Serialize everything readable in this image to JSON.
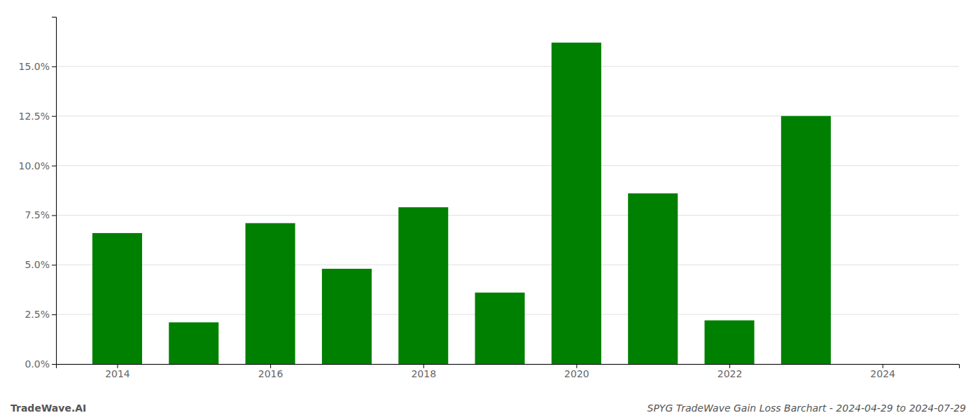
{
  "chart_data": {
    "type": "bar",
    "title": "SPYG TradeWave Gain Loss Barchart - 2024-04-29 to 2024-07-29",
    "annotations": [
      "TradeWave.AI"
    ],
    "x": [
      2014,
      2015,
      2016,
      2017,
      2018,
      2019,
      2020,
      2021,
      2022,
      2023,
      2024
    ],
    "values": [
      0.066,
      0.021,
      0.071,
      0.048,
      0.079,
      0.036,
      0.162,
      0.086,
      0.022,
      0.125,
      0.0
    ],
    "color": "#008000",
    "xlim": [
      2013.2,
      2025.0
    ],
    "xticks": [
      2014,
      2016,
      2018,
      2020,
      2022,
      2024
    ],
    "ylim": [
      0,
      0.175
    ],
    "yticks": [
      {
        "value": 0.0,
        "label": "0.0%"
      },
      {
        "value": 0.025,
        "label": "2.5%"
      },
      {
        "value": 0.05,
        "label": "5.0%"
      },
      {
        "value": 0.075,
        "label": "7.5%"
      },
      {
        "value": 0.1,
        "label": "10.0%"
      },
      {
        "value": 0.125,
        "label": "12.5%"
      },
      {
        "value": 0.15,
        "label": "15.0%"
      }
    ],
    "grid": true
  }
}
